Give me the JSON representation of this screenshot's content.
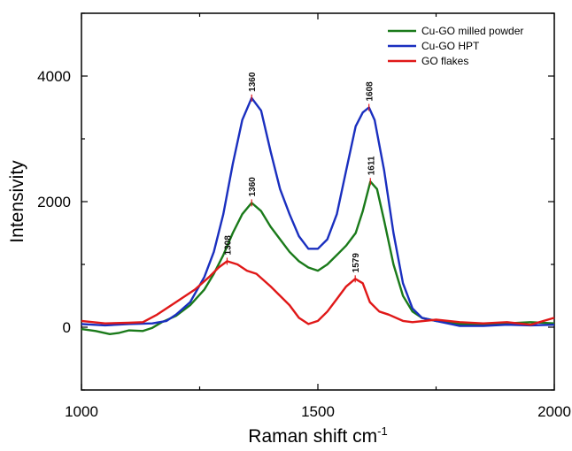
{
  "chart_data": {
    "type": "line",
    "title": "",
    "xlabel": "Raman shift cm",
    "xlabel_superscript": "-1",
    "ylabel": "Intensivity",
    "xlim": [
      1000,
      2000
    ],
    "ylim": [
      -1000,
      5000
    ],
    "x_ticks": [
      1000,
      1500,
      2000
    ],
    "y_ticks": [
      0,
      2000,
      4000
    ],
    "grid": false,
    "legend_position": "top-right",
    "series": [
      {
        "name": "Cu-GO milled powder",
        "color": "#1a7a1a",
        "points": [
          [
            1000,
            -30
          ],
          [
            1030,
            -60
          ],
          [
            1060,
            -110
          ],
          [
            1080,
            -90
          ],
          [
            1100,
            -50
          ],
          [
            1130,
            -60
          ],
          [
            1150,
            -10
          ],
          [
            1170,
            80
          ],
          [
            1200,
            180
          ],
          [
            1230,
            350
          ],
          [
            1260,
            600
          ],
          [
            1280,
            850
          ],
          [
            1300,
            1150
          ],
          [
            1320,
            1500
          ],
          [
            1340,
            1800
          ],
          [
            1360,
            1980
          ],
          [
            1380,
            1850
          ],
          [
            1400,
            1600
          ],
          [
            1420,
            1400
          ],
          [
            1440,
            1200
          ],
          [
            1460,
            1050
          ],
          [
            1480,
            950
          ],
          [
            1500,
            900
          ],
          [
            1520,
            1000
          ],
          [
            1540,
            1150
          ],
          [
            1560,
            1300
          ],
          [
            1580,
            1500
          ],
          [
            1595,
            1850
          ],
          [
            1611,
            2320
          ],
          [
            1625,
            2200
          ],
          [
            1640,
            1700
          ],
          [
            1660,
            1000
          ],
          [
            1680,
            500
          ],
          [
            1700,
            250
          ],
          [
            1720,
            150
          ],
          [
            1750,
            100
          ],
          [
            1800,
            50
          ],
          [
            1850,
            40
          ],
          [
            1900,
            60
          ],
          [
            1950,
            80
          ],
          [
            2000,
            60
          ]
        ]
      },
      {
        "name": "Cu-GO HPT",
        "color": "#1a2fbf",
        "points": [
          [
            1000,
            50
          ],
          [
            1050,
            30
          ],
          [
            1100,
            50
          ],
          [
            1150,
            60
          ],
          [
            1180,
            100
          ],
          [
            1200,
            200
          ],
          [
            1230,
            400
          ],
          [
            1260,
            800
          ],
          [
            1280,
            1200
          ],
          [
            1300,
            1800
          ],
          [
            1320,
            2600
          ],
          [
            1340,
            3300
          ],
          [
            1360,
            3650
          ],
          [
            1380,
            3450
          ],
          [
            1400,
            2800
          ],
          [
            1420,
            2200
          ],
          [
            1440,
            1800
          ],
          [
            1460,
            1450
          ],
          [
            1480,
            1250
          ],
          [
            1500,
            1250
          ],
          [
            1520,
            1400
          ],
          [
            1540,
            1800
          ],
          [
            1560,
            2500
          ],
          [
            1580,
            3200
          ],
          [
            1595,
            3420
          ],
          [
            1608,
            3500
          ],
          [
            1620,
            3300
          ],
          [
            1640,
            2500
          ],
          [
            1660,
            1500
          ],
          [
            1680,
            700
          ],
          [
            1700,
            300
          ],
          [
            1720,
            150
          ],
          [
            1750,
            100
          ],
          [
            1800,
            20
          ],
          [
            1850,
            20
          ],
          [
            1900,
            40
          ],
          [
            1950,
            30
          ],
          [
            2000,
            40
          ]
        ]
      },
      {
        "name": "GO flakes",
        "color": "#e01818",
        "points": [
          [
            1000,
            100
          ],
          [
            1050,
            60
          ],
          [
            1100,
            70
          ],
          [
            1130,
            80
          ],
          [
            1160,
            200
          ],
          [
            1200,
            400
          ],
          [
            1240,
            600
          ],
          [
            1270,
            800
          ],
          [
            1290,
            950
          ],
          [
            1308,
            1050
          ],
          [
            1330,
            1000
          ],
          [
            1350,
            900
          ],
          [
            1370,
            850
          ],
          [
            1400,
            650
          ],
          [
            1420,
            500
          ],
          [
            1440,
            350
          ],
          [
            1460,
            150
          ],
          [
            1480,
            50
          ],
          [
            1500,
            100
          ],
          [
            1520,
            250
          ],
          [
            1540,
            450
          ],
          [
            1560,
            650
          ],
          [
            1579,
            770
          ],
          [
            1595,
            700
          ],
          [
            1610,
            400
          ],
          [
            1630,
            250
          ],
          [
            1650,
            200
          ],
          [
            1680,
            100
          ],
          [
            1700,
            80
          ],
          [
            1750,
            120
          ],
          [
            1800,
            80
          ],
          [
            1850,
            60
          ],
          [
            1900,
            80
          ],
          [
            1950,
            40
          ],
          [
            2000,
            150
          ]
        ]
      }
    ],
    "annotations": [
      {
        "text": "1360",
        "x": 1360,
        "y": 3650,
        "series": "Cu-GO HPT"
      },
      {
        "text": "1608",
        "x": 1608,
        "y": 3500,
        "series": "Cu-GO HPT"
      },
      {
        "text": "1360",
        "x": 1360,
        "y": 1980,
        "series": "Cu-GO milled powder"
      },
      {
        "text": "1611",
        "x": 1611,
        "y": 2320,
        "series": "Cu-GO milled powder"
      },
      {
        "text": "1308",
        "x": 1308,
        "y": 1050,
        "series": "GO flakes"
      },
      {
        "text": "1579",
        "x": 1579,
        "y": 770,
        "series": "GO flakes"
      }
    ]
  }
}
